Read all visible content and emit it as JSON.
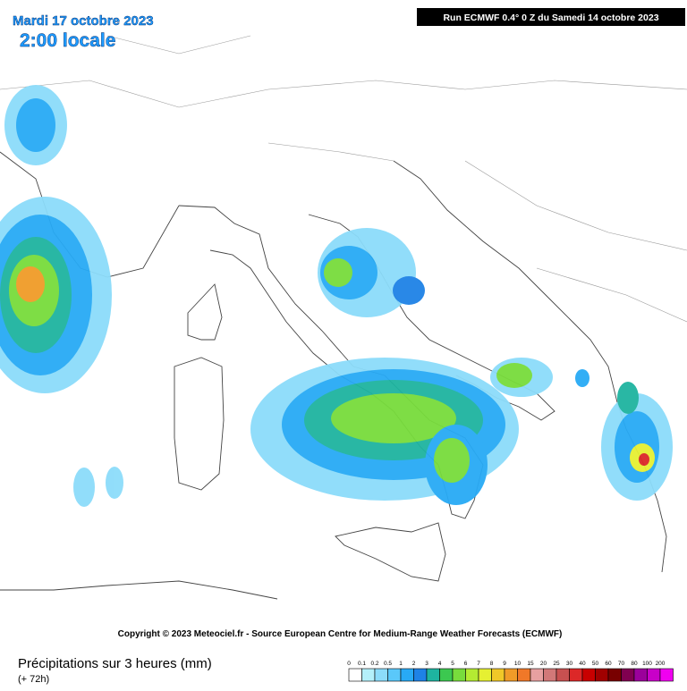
{
  "header": {
    "date": "Mardi 17 octobre 2023",
    "time": "2:00 locale",
    "run": "Run ECMWF 0.4° 0 Z du Samedi 14 octobre 2023"
  },
  "copyright": "Copyright © 2023 Meteociel.fr - Source European Centre for Medium-Range Weather Forecasts (ECMWF)",
  "footer": {
    "title": "Précipitations sur 3 heures (mm)",
    "lead": "(+ 72h)"
  },
  "legend": {
    "labels": [
      0,
      0.1,
      0.2,
      0.5,
      1,
      2,
      3,
      4,
      5,
      6,
      7,
      8,
      9,
      10,
      15,
      20,
      25,
      30,
      40,
      50,
      60,
      70,
      80,
      100,
      200
    ],
    "colors": [
      "#ffffff",
      "#b4f0fa",
      "#8cdcfa",
      "#5ac8fa",
      "#28aaf5",
      "#1e82e6",
      "#1eb4a0",
      "#3cc850",
      "#78dc3c",
      "#b4eb32",
      "#e6f032",
      "#f0c828",
      "#f09b28",
      "#f07828",
      "#e8a0a0",
      "#d27878",
      "#c85050",
      "#dc2828",
      "#c80000",
      "#a00000",
      "#780000",
      "#800050",
      "#9b009b",
      "#c800c8",
      "#f000f0"
    ]
  }
}
